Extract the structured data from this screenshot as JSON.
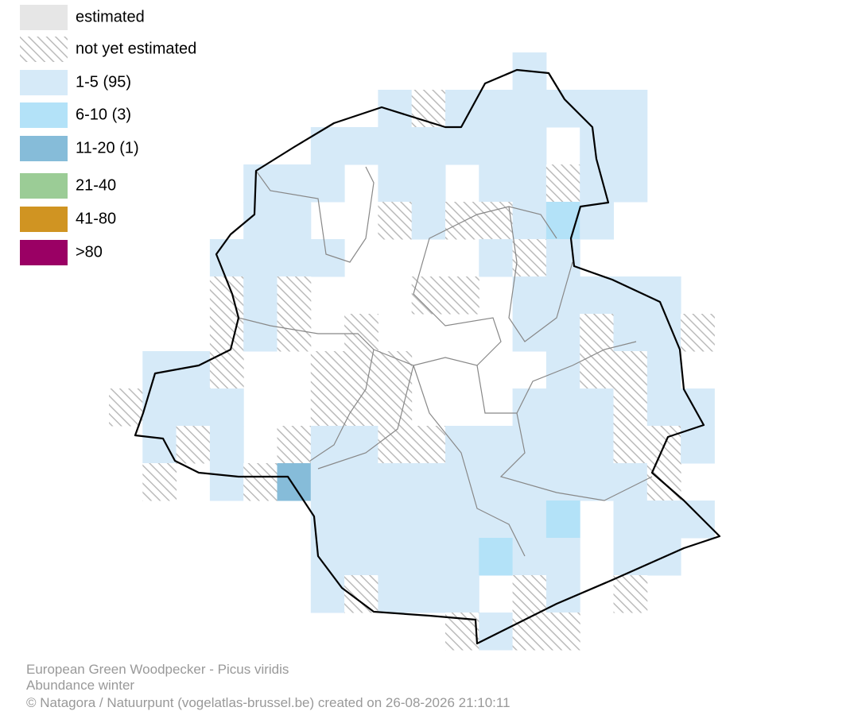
{
  "legend": [
    {
      "label": "estimated",
      "color": "#e6e6e6"
    },
    {
      "label": "not yet estimated",
      "pattern": "hatch"
    },
    {
      "label": "1-5 (95)",
      "color": "#d6eaf8"
    },
    {
      "label": "6-10 (3)",
      "color": "#b3e2f8"
    },
    {
      "label": "11-20 (1)",
      "color": "#86bcd9"
    },
    {
      "label": "21-40",
      "color": "#9bcc96"
    },
    {
      "label": "41-80",
      "color": "#d09422"
    },
    {
      "label": ">80",
      "color": "#9a0064"
    }
  ],
  "footer": {
    "species": "European Green Woodpecker - Picus viridis",
    "subtitle": "Abundance winter",
    "credit": "© Natagora / Natuurpunt (vogelatlas-brussel.be) created on 26-08-2026 21:10:11"
  }
}
